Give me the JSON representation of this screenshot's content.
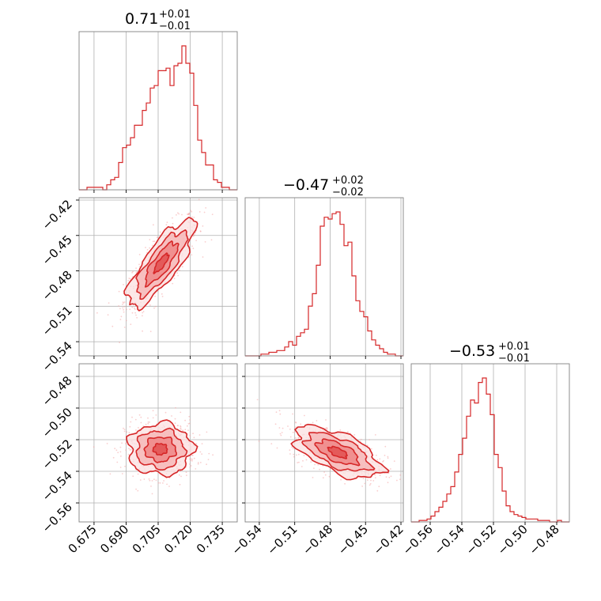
{
  "colors": {
    "accent": "#d62728",
    "contour_fill": "#f08080",
    "scatter": "#f4a6a6",
    "grid": "#b0b0b0",
    "frame": "#808080"
  },
  "chart_data": {
    "type": "corner",
    "parameters": [
      {
        "title_value": "0.71",
        "title_plus": "+0.01",
        "title_minus": "−0.01",
        "range": [
          0.668,
          0.742
        ]
      },
      {
        "title_value": "−0.47",
        "title_plus": "+0.02",
        "title_minus": "−0.02",
        "range": [
          -0.552,
          -0.418
        ]
      },
      {
        "title_value": "−0.53",
        "title_plus": "+0.01",
        "title_minus": "−0.01",
        "range": [
          -0.572,
          -0.472
        ]
      }
    ],
    "ticks": {
      "p0": {
        "values": [
          0.675,
          0.69,
          0.705,
          0.72,
          0.735
        ],
        "labels": [
          "0.675",
          "0.690",
          "0.705",
          "0.720",
          "0.735"
        ]
      },
      "p1_y": {
        "values": [
          -0.42,
          -0.45,
          -0.48,
          -0.51,
          -0.54
        ],
        "labels": [
          "−0.42",
          "−0.45",
          "−0.48",
          "−0.51",
          "−0.54"
        ]
      },
      "p1_x": {
        "values": [
          -0.54,
          -0.51,
          -0.48,
          -0.45,
          -0.42
        ],
        "labels": [
          "−0.54",
          "−0.51",
          "−0.48",
          "−0.45",
          "−0.42"
        ]
      },
      "p2_y": {
        "values": [
          -0.48,
          -0.5,
          -0.52,
          -0.54,
          -0.56
        ],
        "labels": [
          "−0.48",
          "−0.50",
          "−0.52",
          "−0.54",
          "−0.56"
        ]
      },
      "p2_x": {
        "values": [
          -0.56,
          -0.54,
          -0.52,
          -0.5,
          -0.48
        ],
        "labels": [
          "−0.56",
          "−0.54",
          "−0.52",
          "−0.50",
          "−0.48"
        ]
      }
    },
    "histograms": [
      {
        "param": 0,
        "bin_start": 0.668,
        "bin_width": 0.00185,
        "counts": [
          0,
          0,
          1,
          1,
          1,
          1,
          0,
          2,
          4,
          5,
          11,
          17,
          18,
          21,
          26,
          26,
          32,
          35,
          41,
          42,
          48,
          48,
          49,
          42,
          50,
          51,
          58,
          51,
          47,
          34,
          20,
          15,
          10,
          10,
          4,
          3,
          1,
          1,
          0,
          0
        ]
      },
      {
        "param": 1,
        "bin_start": -0.552,
        "bin_width": 0.00335,
        "counts": [
          0,
          0,
          0,
          0,
          1,
          1,
          2,
          2,
          3,
          3,
          5,
          8,
          6,
          11,
          13,
          15,
          28,
          35,
          51,
          73,
          78,
          77,
          80,
          81,
          74,
          62,
          64,
          45,
          31,
          25,
          22,
          14,
          9,
          6,
          4,
          2,
          1,
          1,
          0,
          0
        ]
      },
      {
        "param": 2,
        "bin_start": -0.572,
        "bin_width": 0.0025,
        "counts": [
          0,
          0,
          1,
          1,
          2,
          4,
          7,
          10,
          14,
          19,
          24,
          34,
          46,
          57,
          72,
          83,
          81,
          95,
          98,
          87,
          73,
          46,
          37,
          21,
          11,
          7,
          5,
          4,
          3,
          2,
          2,
          2,
          1,
          1,
          1,
          0,
          0,
          1,
          0,
          0
        ]
      }
    ],
    "scatter_panels": [
      {
        "x_param": 0,
        "y_param": 1,
        "mean": [
          0.7065,
          -0.4735
        ],
        "std": [
          0.0075,
          0.0175
        ],
        "correlation": 0.8
      },
      {
        "x_param": 0,
        "y_param": 2,
        "mean": [
          0.706,
          -0.526
        ],
        "std": [
          0.0072,
          0.0078
        ],
        "correlation": 0.0
      },
      {
        "x_param": 1,
        "y_param": 2,
        "mean": [
          -0.4735,
          -0.528
        ],
        "std": [
          0.0175,
          0.0078
        ],
        "correlation": -0.6
      }
    ],
    "grid": true
  }
}
